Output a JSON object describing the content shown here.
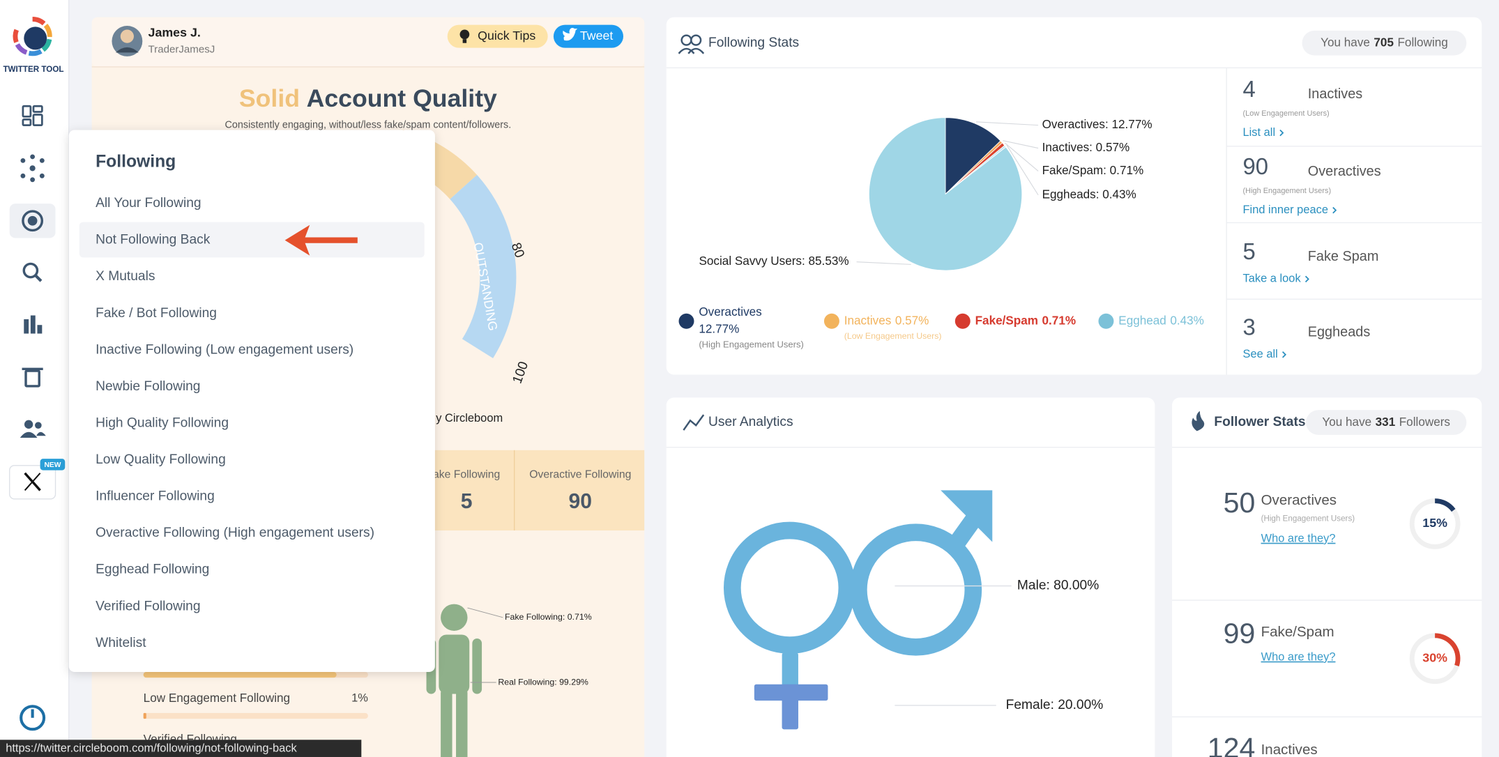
{
  "sidebar": {
    "logo_text": "TWITTER TOOL",
    "new_badge": "NEW"
  },
  "profile": {
    "name": "James J.",
    "handle": "TraderJamesJ",
    "quick_tips": "Quick Tips",
    "tweet": "Tweet"
  },
  "quality": {
    "title_highlight": "Solid",
    "title_rest": "Account Quality",
    "subtitle": "Consistently engaging, without/less fake/spam content/followers.",
    "gauge_labels": [
      "80",
      "100"
    ],
    "gauge_band": "OUTSTANDING",
    "credit": "y Circleboom",
    "stats": [
      {
        "label": "ake Following",
        "value": "5"
      },
      {
        "label": "Overactive Following",
        "value": "90"
      }
    ]
  },
  "breakdown": {
    "fake_label": "Fake Following: 0.71%",
    "real_label": "Real Following: 99.29%",
    "bar_label": "Low Engagement Following",
    "bar_value": "1%",
    "cut_label": "Verified Following"
  },
  "dropdown": {
    "title": "Following",
    "items": [
      "All Your Following",
      "Not Following Back",
      "X Mutuals",
      "Fake / Bot Following",
      "Inactive Following (Low engagement users)",
      "Newbie Following",
      "High Quality Following",
      "Low Quality Following",
      "Influencer Following",
      "Overactive Following (High engagement users)",
      "Egghead Following",
      "Verified Following",
      "Whitelist"
    ],
    "active": 1
  },
  "status_url": "https://twitter.circleboom.com/following/not-following-back",
  "following_stats": {
    "title": "Following Stats",
    "pill_prefix": "You have",
    "pill_count": "705",
    "pill_suffix": "Following",
    "pie": {
      "type": "pie",
      "segments": [
        {
          "name": "Overactives",
          "value": 12.77,
          "label": "Overactives: 12.77%",
          "color": "#1f3a64"
        },
        {
          "name": "Inactives",
          "value": 0.57,
          "label": "Inactives: 0.57%",
          "color": "#f2a65a"
        },
        {
          "name": "Fake/Spam",
          "value": 0.71,
          "label": "Fake/Spam: 0.71%",
          "color": "#d9432f"
        },
        {
          "name": "Eggheads",
          "value": 0.43,
          "label": "Eggheads: 0.43%",
          "color": "#c3e6f0"
        },
        {
          "name": "Social Savvy Users",
          "value": 85.53,
          "label": "Social Savvy Users: 85.53%",
          "color": "#9fd6e6"
        }
      ]
    },
    "legend": [
      {
        "name": "Overactives",
        "pct": "12.77%",
        "note": "(High Engagement Users)",
        "color": "#1f3a64"
      },
      {
        "name": "Inactives",
        "pct": "0.57%",
        "note": "(Low Engagement Users)",
        "color": "#f2b35c"
      },
      {
        "name": "Fake/Spam",
        "pct": "0.71%",
        "color": "#d63b2f"
      },
      {
        "name": "Egghead",
        "pct": "0.43%",
        "color": "#7cc1d8"
      }
    ],
    "summary": [
      {
        "count": "4",
        "name": "Inactives",
        "note": "(Low Engagement Users)",
        "link": "List all"
      },
      {
        "count": "90",
        "name": "Overactives",
        "note": "(High Engagement Users)",
        "link": "Find inner peace"
      },
      {
        "count": "5",
        "name": "Fake Spam",
        "link": "Take a look"
      },
      {
        "count": "3",
        "name": "Eggheads",
        "link": "See all"
      }
    ]
  },
  "user_analytics": {
    "title": "User Analytics",
    "male_label": "Male: 80.00%",
    "female_label": "Female: 20.00%"
  },
  "follower_stats": {
    "title": "Follower Stats",
    "pill_prefix": "You have",
    "pill_count": "331",
    "pill_suffix": "Followers",
    "rows": [
      {
        "count": "50",
        "name": "Overactives",
        "note": "(High Engagement Users)",
        "link": "Who are they?",
        "percent": 15,
        "percent_label": "15%",
        "color": "#1f3a64"
      },
      {
        "count": "99",
        "name": "Fake/Spam",
        "link": "Who are they?",
        "percent": 30,
        "percent_label": "30%",
        "color": "#d9432f"
      },
      {
        "count": "124",
        "name": "Inactives"
      }
    ]
  }
}
